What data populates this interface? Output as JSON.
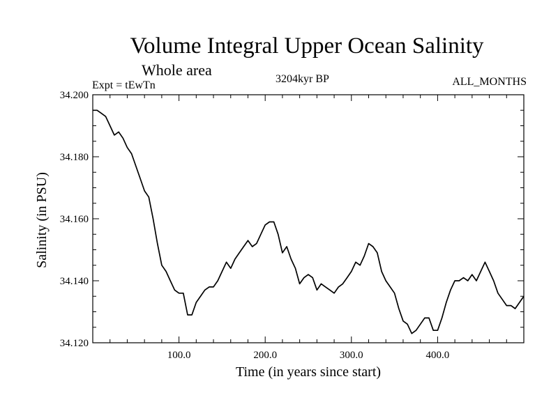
{
  "header": {
    "title": "Volume Integral Upper Ocean Salinity",
    "subtitle": "Whole area",
    "expt": "Expt = tEwTn",
    "period": "3204kyr BP",
    "months": "ALL_MONTHS"
  },
  "chart_data": {
    "type": "line",
    "title": "Volume Integral Upper Ocean Salinity",
    "xlabel": "Time (in years since start)",
    "ylabel": "Salinity (in PSU)",
    "xlim": [
      0,
      500
    ],
    "ylim": [
      34.12,
      34.2
    ],
    "xticks": [
      100,
      200,
      300,
      400
    ],
    "xtick_labels": [
      "100.0",
      "200.0",
      "300.0",
      "400.0"
    ],
    "yticks": [
      34.12,
      34.14,
      34.16,
      34.18,
      34.2
    ],
    "ytick_labels": [
      "34.120",
      "34.140",
      "34.160",
      "34.180",
      "34.200"
    ],
    "grid": false,
    "series": [
      {
        "name": "Salinity",
        "x": [
          0,
          5,
          10,
          15,
          20,
          25,
          30,
          35,
          40,
          45,
          50,
          55,
          60,
          65,
          70,
          75,
          80,
          85,
          90,
          95,
          100,
          105,
          110,
          115,
          120,
          125,
          130,
          135,
          140,
          145,
          150,
          155,
          160,
          165,
          170,
          175,
          180,
          185,
          190,
          195,
          200,
          205,
          210,
          215,
          220,
          225,
          230,
          235,
          240,
          245,
          250,
          255,
          260,
          265,
          270,
          275,
          280,
          285,
          290,
          295,
          300,
          305,
          310,
          315,
          320,
          325,
          330,
          335,
          340,
          345,
          350,
          355,
          360,
          365,
          370,
          375,
          380,
          385,
          390,
          395,
          400,
          405,
          410,
          415,
          420,
          425,
          430,
          435,
          440,
          445,
          450,
          455,
          460,
          465,
          470,
          475,
          480,
          485,
          490,
          495,
          500
        ],
        "values": [
          34.195,
          34.195,
          34.194,
          34.193,
          34.19,
          34.187,
          34.188,
          34.186,
          34.183,
          34.181,
          34.177,
          34.173,
          34.169,
          34.167,
          34.16,
          34.152,
          34.145,
          34.143,
          34.14,
          34.137,
          34.136,
          34.136,
          34.129,
          34.129,
          34.133,
          34.135,
          34.137,
          34.138,
          34.138,
          34.14,
          34.143,
          34.146,
          34.144,
          34.147,
          34.149,
          34.151,
          34.153,
          34.151,
          34.152,
          34.155,
          34.158,
          34.159,
          34.159,
          34.155,
          34.149,
          34.151,
          34.147,
          34.144,
          34.139,
          34.141,
          34.142,
          34.141,
          34.137,
          34.139,
          34.138,
          34.137,
          34.136,
          34.138,
          34.139,
          34.141,
          34.143,
          34.146,
          34.145,
          34.148,
          34.152,
          34.151,
          34.149,
          34.143,
          34.14,
          34.138,
          34.136,
          34.131,
          34.127,
          34.126,
          34.123,
          34.124,
          34.126,
          34.128,
          34.128,
          34.124,
          34.124,
          34.128,
          34.133,
          34.137,
          34.14,
          34.14,
          34.141,
          34.14,
          34.142,
          34.14,
          34.143,
          34.146,
          34.143,
          34.14,
          34.136,
          34.134,
          34.132,
          34.132,
          34.131,
          34.133,
          34.135
        ]
      }
    ]
  }
}
